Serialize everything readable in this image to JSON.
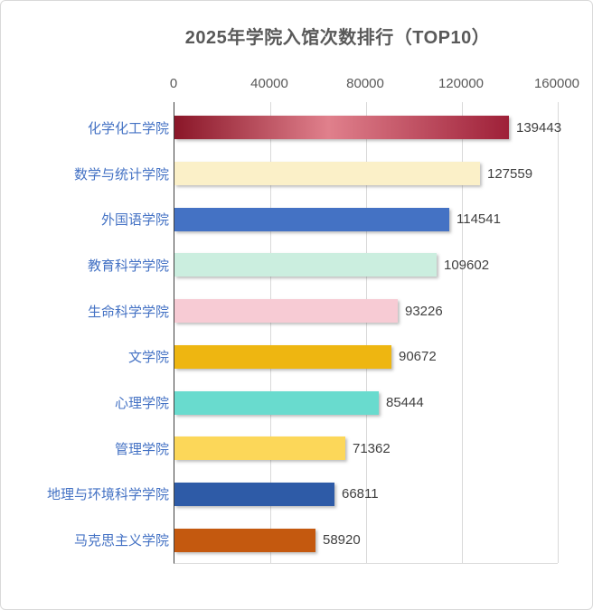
{
  "title": "2025年学院入馆次数排行（TOP10）",
  "chart_data": {
    "type": "bar",
    "orientation": "horizontal",
    "title": "2025年学院入馆次数排行（TOP10）",
    "categories": [
      "化学化工学院",
      "数学与统计学院",
      "外国语学院",
      "教育科学学院",
      "生命科学学院",
      "文学院",
      "心理学院",
      "管理学院",
      "地理与环境科学学院",
      "马克思主义学院"
    ],
    "values": [
      139443,
      127559,
      114541,
      109602,
      93226,
      90672,
      85444,
      71362,
      66811,
      58920
    ],
    "bar_colors": [
      [
        "#8a1628",
        "#e0808c",
        "#9e2038"
      ],
      "#fbf0c8",
      "#4472c4",
      "#cbeedf",
      "#f7cbd4",
      "#eeb611",
      "#69dbce",
      "#fcd759",
      "#2e5ba7",
      "#c4590f"
    ],
    "xlim": [
      0,
      160000
    ],
    "x_ticks": [
      0,
      40000,
      80000,
      120000,
      160000
    ],
    "x_tick_labels": [
      "0",
      "40000",
      "80000",
      "120000",
      "160000"
    ],
    "grid": true,
    "legend": false,
    "value_labels_shown": true,
    "xlabel": "",
    "ylabel": ""
  },
  "styles": {
    "title_color": "#595959",
    "category_label_color": "#4472c4",
    "value_label_color": "#404040",
    "axis_tick_color": "#595959",
    "gridline_color": "#d9d9d9",
    "axis_line_color": "#404040",
    "background_color": "#ffffff"
  }
}
